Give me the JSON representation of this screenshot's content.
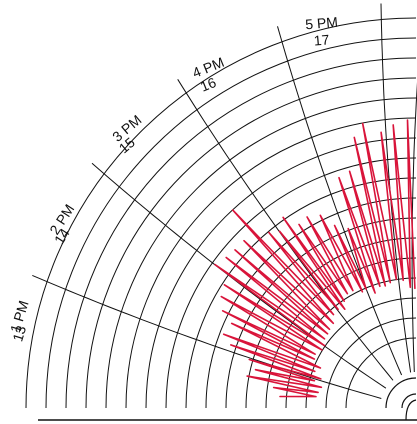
{
  "chart_data": {
    "type": "other",
    "description_kind": "circular-chart-recorder-trace",
    "hour_labels": [
      {
        "time": "1 PM",
        "hour": "13"
      },
      {
        "time": "2 PM",
        "hour": "14"
      },
      {
        "time": "3 PM",
        "hour": "15"
      },
      {
        "time": "4 PM",
        "hour": "16"
      },
      {
        "time": "5 PM",
        "hour": "17"
      }
    ],
    "colors": {
      "grid": "#111111",
      "trace": "#d9143a",
      "background": "#ffffff"
    }
  }
}
